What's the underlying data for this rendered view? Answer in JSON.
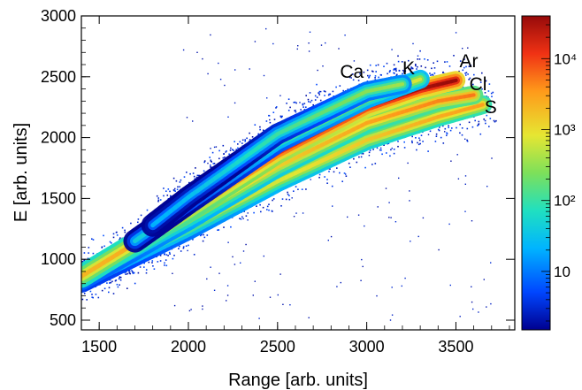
{
  "chart_data": {
    "type": "heatmap",
    "title": "",
    "xlabel": "Range [arb. units]",
    "ylabel": "E [arb. units]",
    "xlim": [
      1400,
      3830
    ],
    "ylim": [
      420,
      3000
    ],
    "x_ticks": [
      1500,
      2000,
      2500,
      3000,
      3500
    ],
    "y_ticks": [
      500,
      1000,
      1500,
      2000,
      2500,
      3000
    ],
    "colorbar": {
      "scale": "log",
      "range": [
        1.5,
        40000
      ],
      "ticks": [
        {
          "value": 10,
          "label": "10"
        },
        {
          "value": 100,
          "label": "10²"
        },
        {
          "value": 1000,
          "label": "10³"
        },
        {
          "value": 10000,
          "label": "10⁴"
        }
      ],
      "colormap": [
        "#00008f",
        "#0046ff",
        "#00b4ff",
        "#20e0c0",
        "#7de05a",
        "#e6e632",
        "#ff9a1a",
        "#f03214",
        "#960a0a"
      ]
    },
    "bands": [
      {
        "label": "S",
        "points": [
          [
            1400,
            820
          ],
          [
            2000,
            1250
          ],
          [
            2500,
            1640
          ],
          [
            3000,
            1980
          ],
          [
            3400,
            2170
          ],
          [
            3650,
            2270
          ]
        ],
        "peak_count": 3000
      },
      {
        "label": "Cl",
        "points": [
          [
            1400,
            840
          ],
          [
            2000,
            1330
          ],
          [
            2500,
            1760
          ],
          [
            3000,
            2120
          ],
          [
            3400,
            2300
          ],
          [
            3600,
            2350
          ]
        ],
        "peak_count": 5000
      },
      {
        "label": "Ar",
        "points": [
          [
            1400,
            860
          ],
          [
            2000,
            1400
          ],
          [
            2500,
            1870
          ],
          [
            3000,
            2250
          ],
          [
            3300,
            2400
          ],
          [
            3500,
            2470
          ]
        ],
        "peak_count": 40000
      },
      {
        "label": "K",
        "points": [
          [
            1700,
            1150
          ],
          [
            2000,
            1460
          ],
          [
            2500,
            1960
          ],
          [
            3000,
            2320
          ],
          [
            3300,
            2480
          ]
        ],
        "peak_count": 800
      },
      {
        "label": "Ca",
        "points": [
          [
            1800,
            1280
          ],
          [
            2000,
            1510
          ],
          [
            2500,
            2030
          ],
          [
            3000,
            2380
          ],
          [
            3200,
            2440
          ]
        ],
        "peak_count": 400
      }
    ],
    "annotations": [
      "Ca",
      "K",
      "Ar",
      "Cl",
      "S"
    ]
  }
}
